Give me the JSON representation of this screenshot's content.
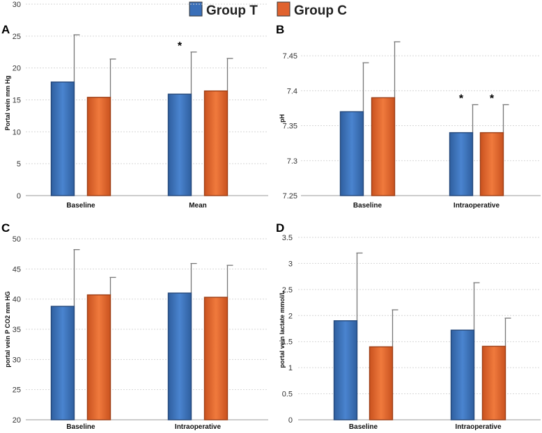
{
  "legend": [
    {
      "name": "Group T",
      "color": "#3a6fb8"
    },
    {
      "name": "Group C",
      "color": "#e0622e"
    }
  ],
  "chart_data": [
    {
      "panel": "A",
      "type": "bar",
      "ylabel": "Portal vein  mm Hg",
      "categories": [
        "Baseline",
        "Mean"
      ],
      "ylim": [
        0,
        30
      ],
      "yticks": [
        0,
        5,
        10,
        15,
        20,
        25,
        30
      ],
      "series": [
        {
          "name": "Group T",
          "values": [
            17.8,
            15.9
          ],
          "errors": [
            7.4,
            6.6
          ]
        },
        {
          "name": "Group C",
          "values": [
            15.4,
            16.4
          ],
          "errors": [
            6.0,
            5.1
          ]
        }
      ],
      "significance": [
        {
          "category": 1,
          "series": 0,
          "label": "*"
        }
      ]
    },
    {
      "panel": "B",
      "type": "bar",
      "ylabel": "pH",
      "categories": [
        "Baseline",
        "Intraoperative"
      ],
      "ylim": [
        7.25,
        7.47
      ],
      "yticks": [
        7.25,
        7.3,
        7.35,
        7.4,
        7.45
      ],
      "series": [
        {
          "name": "Group T",
          "values": [
            7.37,
            7.34
          ],
          "errors": [
            0.07,
            0.04
          ]
        },
        {
          "name": "Group C",
          "values": [
            7.39,
            7.34
          ],
          "errors": [
            0.08,
            0.04
          ]
        }
      ],
      "significance": [
        {
          "category": 1,
          "series": 0,
          "label": "*"
        },
        {
          "category": 1,
          "series": 1,
          "label": "*"
        }
      ]
    },
    {
      "panel": "C",
      "type": "bar",
      "ylabel": "portal vein  P CO2 mm HG",
      "categories": [
        "Baseline",
        "Intraoperative"
      ],
      "ylim": [
        20,
        50
      ],
      "yticks": [
        20,
        25,
        30,
        35,
        40,
        45,
        50
      ],
      "series": [
        {
          "name": "Group T",
          "values": [
            38.8,
            41.0
          ],
          "errors": [
            9.4,
            4.9
          ]
        },
        {
          "name": "Group C",
          "values": [
            40.7,
            40.3
          ],
          "errors": [
            2.9,
            5.3
          ]
        }
      ],
      "significance": []
    },
    {
      "panel": "D",
      "type": "bar",
      "ylabel": "portal vein lactate mmol/L",
      "categories": [
        "Baseline",
        "Intraoperative"
      ],
      "ylim": [
        0,
        3.5
      ],
      "yticks": [
        0,
        0.5,
        1,
        1.5,
        2,
        2.5,
        3,
        3.5
      ],
      "series": [
        {
          "name": "Group T",
          "values": [
            1.9,
            1.72
          ],
          "errors": [
            1.3,
            0.91
          ]
        },
        {
          "name": "Group C",
          "values": [
            1.4,
            1.41
          ],
          "errors": [
            0.71,
            0.54
          ]
        }
      ],
      "significance": []
    }
  ]
}
